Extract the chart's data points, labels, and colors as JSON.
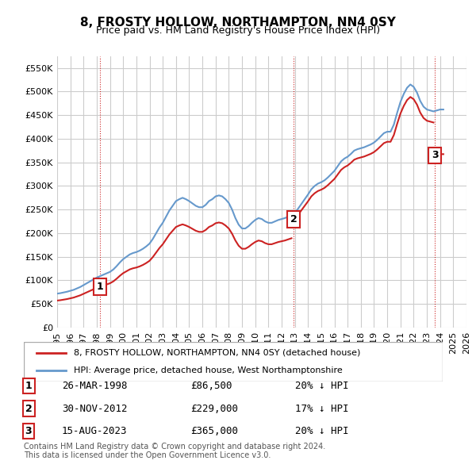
{
  "title": "8, FROSTY HOLLOW, NORTHAMPTON, NN4 0SY",
  "subtitle": "Price paid vs. HM Land Registry's House Price Index (HPI)",
  "xlim": [
    1995,
    2026
  ],
  "ylim": [
    0,
    575000
  ],
  "yticks": [
    0,
    50000,
    100000,
    150000,
    200000,
    250000,
    300000,
    350000,
    400000,
    450000,
    500000,
    550000
  ],
  "xticks": [
    1995,
    1996,
    1997,
    1998,
    1999,
    2000,
    2001,
    2002,
    2003,
    2004,
    2005,
    2006,
    2007,
    2008,
    2009,
    2010,
    2011,
    2012,
    2013,
    2014,
    2015,
    2016,
    2017,
    2018,
    2019,
    2020,
    2021,
    2022,
    2023,
    2024,
    2025,
    2026
  ],
  "hpi_color": "#6699cc",
  "price_color": "#cc2222",
  "grid_color": "#cccccc",
  "bg_color": "#ffffff",
  "purchases": [
    {
      "year": 1998.23,
      "price": 86500,
      "label": "1"
    },
    {
      "year": 2012.92,
      "price": 229000,
      "label": "2"
    },
    {
      "year": 2023.62,
      "price": 365000,
      "label": "3"
    }
  ],
  "table_rows": [
    {
      "num": "1",
      "date": "26-MAR-1998",
      "price": "£86,500",
      "hpi": "20% ↓ HPI"
    },
    {
      "num": "2",
      "date": "30-NOV-2012",
      "price": "£229,000",
      "hpi": "17% ↓ HPI"
    },
    {
      "num": "3",
      "date": "15-AUG-2023",
      "price": "£365,000",
      "hpi": "20% ↓ HPI"
    }
  ],
  "legend_line1": "8, FROSTY HOLLOW, NORTHAMPTON, NN4 0SY (detached house)",
  "legend_line2": "HPI: Average price, detached house, West Northamptonshire",
  "footer": "Contains HM Land Registry data © Crown copyright and database right 2024.\nThis data is licensed under the Open Government Licence v3.0.",
  "hpi_data_x": [
    1995.0,
    1995.25,
    1995.5,
    1995.75,
    1996.0,
    1996.25,
    1996.5,
    1996.75,
    1997.0,
    1997.25,
    1997.5,
    1997.75,
    1998.0,
    1998.25,
    1998.5,
    1998.75,
    1999.0,
    1999.25,
    1999.5,
    1999.75,
    2000.0,
    2000.25,
    2000.5,
    2000.75,
    2001.0,
    2001.25,
    2001.5,
    2001.75,
    2002.0,
    2002.25,
    2002.5,
    2002.75,
    2003.0,
    2003.25,
    2003.5,
    2003.75,
    2004.0,
    2004.25,
    2004.5,
    2004.75,
    2005.0,
    2005.25,
    2005.5,
    2005.75,
    2006.0,
    2006.25,
    2006.5,
    2006.75,
    2007.0,
    2007.25,
    2007.5,
    2007.75,
    2008.0,
    2008.25,
    2008.5,
    2008.75,
    2009.0,
    2009.25,
    2009.5,
    2009.75,
    2010.0,
    2010.25,
    2010.5,
    2010.75,
    2011.0,
    2011.25,
    2011.5,
    2011.75,
    2012.0,
    2012.25,
    2012.5,
    2012.75,
    2013.0,
    2013.25,
    2013.5,
    2013.75,
    2014.0,
    2014.25,
    2014.5,
    2014.75,
    2015.0,
    2015.25,
    2015.5,
    2015.75,
    2016.0,
    2016.25,
    2016.5,
    2016.75,
    2017.0,
    2017.25,
    2017.5,
    2017.75,
    2018.0,
    2018.25,
    2018.5,
    2018.75,
    2019.0,
    2019.25,
    2019.5,
    2019.75,
    2020.0,
    2020.25,
    2020.5,
    2020.75,
    2021.0,
    2021.25,
    2021.5,
    2021.75,
    2022.0,
    2022.25,
    2022.5,
    2022.75,
    2023.0,
    2023.25,
    2023.5,
    2023.75,
    2024.0,
    2024.25
  ],
  "hpi_data_y": [
    72000,
    73000,
    74500,
    76000,
    78000,
    80000,
    83000,
    86000,
    90000,
    94000,
    98000,
    102000,
    106000,
    109000,
    112000,
    115000,
    118000,
    123000,
    130000,
    138000,
    145000,
    150000,
    155000,
    158000,
    160000,
    163000,
    167000,
    172000,
    178000,
    188000,
    200000,
    212000,
    222000,
    235000,
    248000,
    258000,
    268000,
    272000,
    275000,
    272000,
    268000,
    263000,
    258000,
    255000,
    255000,
    260000,
    268000,
    272000,
    278000,
    280000,
    278000,
    272000,
    264000,
    250000,
    232000,
    218000,
    210000,
    210000,
    215000,
    222000,
    228000,
    232000,
    230000,
    225000,
    222000,
    222000,
    225000,
    228000,
    230000,
    232000,
    235000,
    238000,
    243000,
    252000,
    262000,
    272000,
    282000,
    293000,
    300000,
    305000,
    308000,
    312000,
    318000,
    325000,
    332000,
    342000,
    352000,
    358000,
    362000,
    368000,
    375000,
    378000,
    380000,
    382000,
    385000,
    388000,
    392000,
    398000,
    405000,
    412000,
    415000,
    415000,
    430000,
    455000,
    478000,
    495000,
    508000,
    515000,
    510000,
    498000,
    480000,
    468000,
    462000,
    460000,
    458000,
    460000,
    462000,
    462000
  ]
}
